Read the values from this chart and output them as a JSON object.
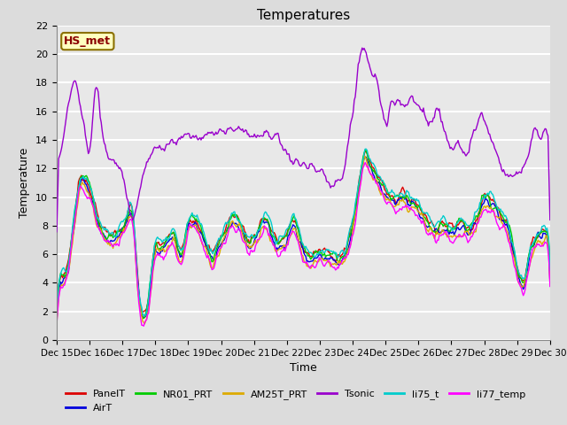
{
  "title": "Temperatures",
  "xlabel": "Time",
  "ylabel": "Temperature",
  "ylim": [
    0,
    22
  ],
  "yticks": [
    0,
    2,
    4,
    6,
    8,
    10,
    12,
    14,
    16,
    18,
    20,
    22
  ],
  "xtick_labels": [
    "Dec 15",
    "Dec 16",
    "Dec 17",
    "Dec 18",
    "Dec 19",
    "Dec 20",
    "Dec 21",
    "Dec 22",
    "Dec 23",
    "Dec 24",
    "Dec 25",
    "Dec 26",
    "Dec 27",
    "Dec 28",
    "Dec 29",
    "Dec 30"
  ],
  "annotation_text": "HS_met",
  "annotation_color": "#8B0000",
  "annotation_bg": "#FFFFC0",
  "annotation_border": "#8B7000",
  "series_colors": {
    "PanelT": "#DD0000",
    "AirT": "#0000DD",
    "NR01_PRT": "#00CC00",
    "AM25T_PRT": "#DDAA00",
    "Tsonic": "#9900CC",
    "li75_t": "#00CCCC",
    "li77_temp": "#FF00FF"
  },
  "bg_color": "#E8E8E8",
  "grid_color": "#FFFFFF",
  "n_points": 500
}
